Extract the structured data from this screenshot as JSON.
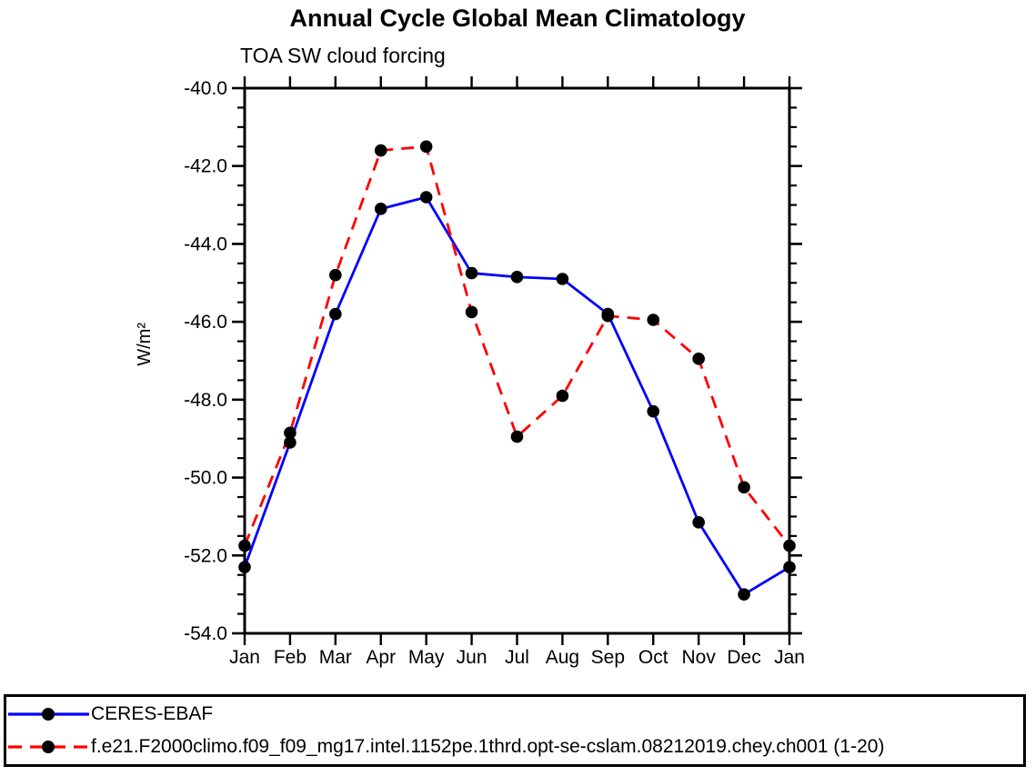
{
  "chart_data": {
    "type": "line",
    "title": "Annual Cycle Global Mean Climatology",
    "subtitle": "TOA SW cloud forcing",
    "ylabel": "W/m²",
    "xlabel": "",
    "categories": [
      "Jan",
      "Feb",
      "Mar",
      "Apr",
      "May",
      "Jun",
      "Jul",
      "Aug",
      "Sep",
      "Oct",
      "Nov",
      "Dec",
      "Jan"
    ],
    "series": [
      {
        "name": "CERES-EBAF",
        "color": "#0000ff",
        "line_style": "solid",
        "marker": "black-filled-circle",
        "values": [
          -52.3,
          -49.1,
          -45.8,
          -43.1,
          -42.8,
          -44.75,
          -44.85,
          -44.9,
          -45.8,
          -48.3,
          -51.15,
          -53.0,
          -52.3
        ]
      },
      {
        "name": "f.e21.F2000climo.f09_f09_mg17.intel.1152pe.1thrd.opt-se-cslam.08212019.chey.ch001 (1-20)",
        "color": "#ff0000",
        "line_style": "dashed",
        "marker": "black-filled-circle",
        "values": [
          -51.75,
          -48.85,
          -44.8,
          -41.6,
          -41.5,
          -45.75,
          -48.95,
          -47.9,
          -45.85,
          -45.95,
          -46.95,
          -50.25,
          -51.75
        ]
      }
    ],
    "ylim": [
      -54.0,
      -40.0
    ],
    "y_major_step": 2.0,
    "y_minor_step": 0.5,
    "y_tick_labels": [
      "-40.0",
      "-42.0",
      "-44.0",
      "-46.0",
      "-48.0",
      "-50.0",
      "-52.0",
      "-54.0"
    ],
    "grid": "off",
    "tick_direction": "out",
    "legend_position": "bottom-left-boxed",
    "axis_color": "#000000",
    "marker_color": "#000000"
  }
}
